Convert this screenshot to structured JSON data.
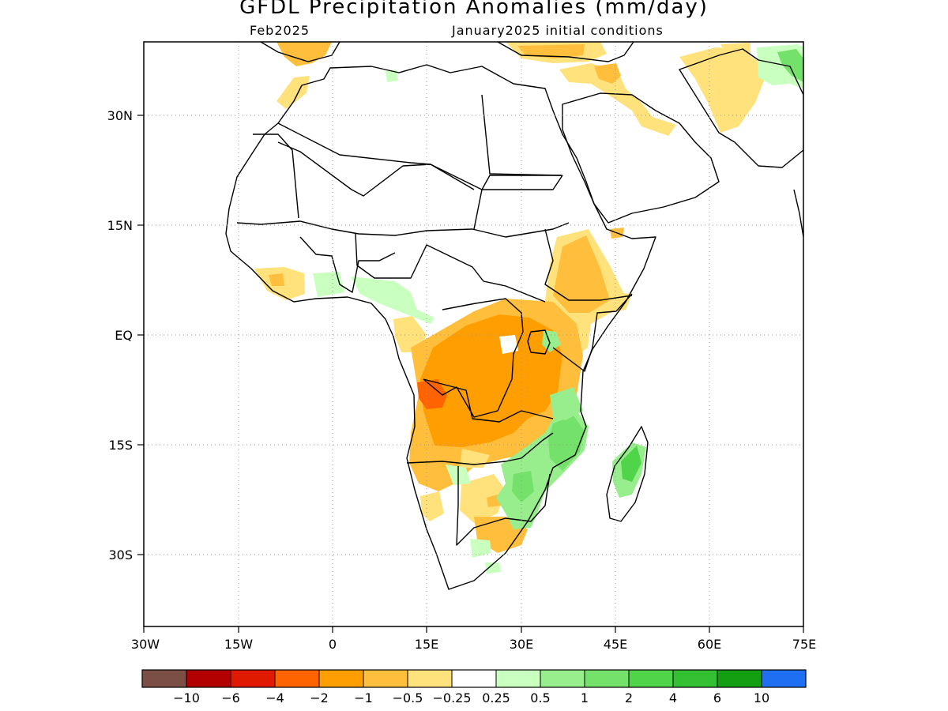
{
  "title": "GFDL Precipitation Anomalies (mm/day)",
  "subtitle_left": "Feb2025",
  "subtitle_right": "January2025 initial conditions",
  "map": {
    "region": "Africa",
    "lon_range": [
      -30,
      75
    ],
    "lat_range": [
      -40,
      40
    ],
    "grid": "dotted",
    "x_ticks": [
      "30W",
      "15W",
      "0",
      "15E",
      "30E",
      "45E",
      "60E",
      "75E"
    ],
    "y_ticks": [
      "30N",
      "15N",
      "EQ",
      "15S",
      "30S"
    ]
  },
  "colorbar": {
    "labels": [
      "−10",
      "−6",
      "−4",
      "−2",
      "−1",
      "−0.5",
      "−0.25",
      "0.25",
      "0.5",
      "1",
      "2",
      "4",
      "6",
      "10"
    ],
    "colors": [
      "#7b4f46",
      "#b30000",
      "#e01a00",
      "#ff6400",
      "#ff9e00",
      "#ffbf3c",
      "#ffe27c",
      "#ffffff",
      "#c9ffbf",
      "#98ee8c",
      "#74e26a",
      "#4fd44a",
      "#33c033",
      "#12a012",
      "#1f6ff2"
    ]
  }
}
